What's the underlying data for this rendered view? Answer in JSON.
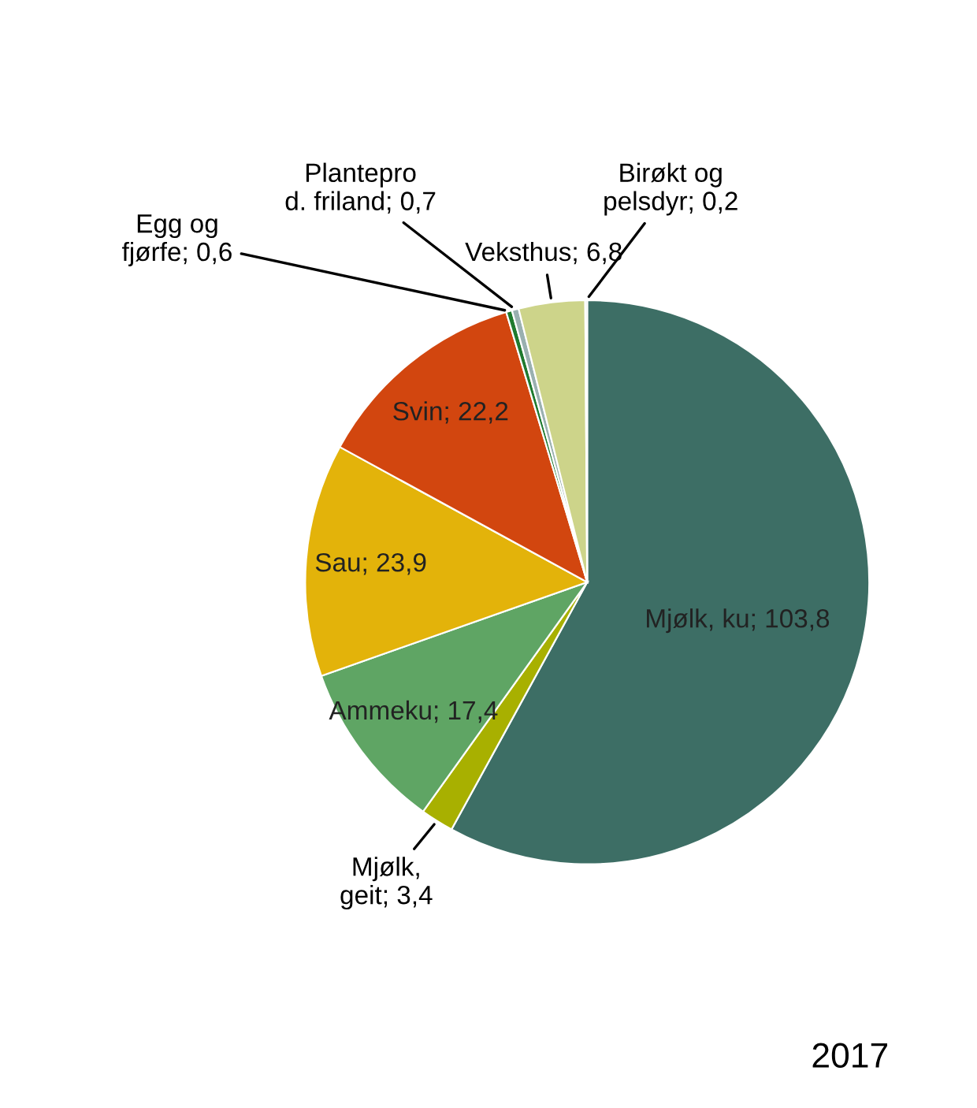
{
  "chart_data": {
    "type": "pie",
    "categories": [
      "Mjølk, ku",
      "Mjølk,\ngeit",
      "Ammeku",
      "Sau",
      "Svin",
      "Egg og\nfjørfe",
      "Plantepro\nd. friland",
      "Veksthus",
      "Birøkt og\npelsdyr"
    ],
    "values": [
      103.8,
      3.4,
      17.4,
      23.9,
      22.2,
      0.6,
      0.7,
      6.8,
      0.2
    ],
    "value_labels": [
      "103,8",
      "3,4",
      "17,4",
      "23,9",
      "22,2",
      "0,6",
      "0,7",
      "6,8",
      "0,2"
    ],
    "colors": [
      "#3d6e65",
      "#a8b000",
      "#5fa564",
      "#e3b30a",
      "#d2460f",
      "#1f7a2e",
      "#9ab0b0",
      "#cdd48a",
      "#c0c8c0"
    ],
    "annotations": [
      "2017"
    ]
  }
}
